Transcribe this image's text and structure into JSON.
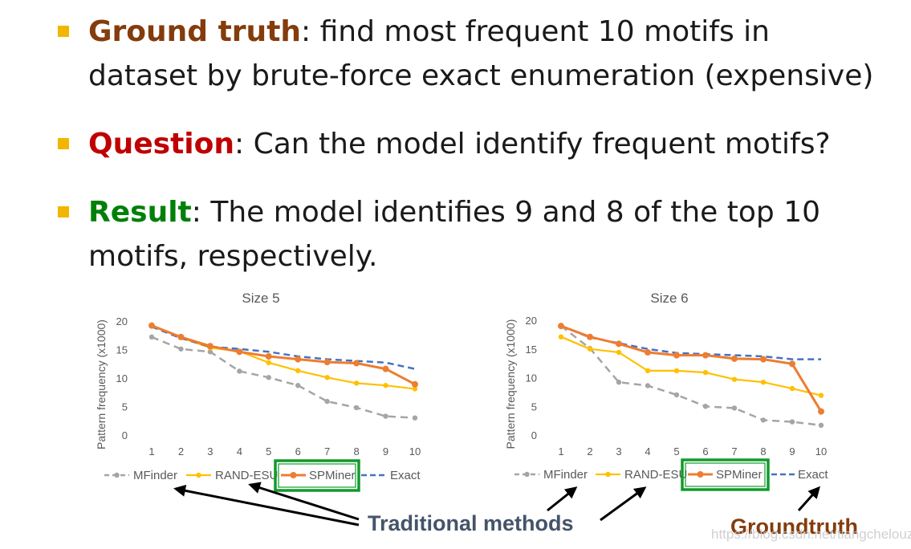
{
  "colors": {
    "bullet_marker": "#f2b600",
    "ground_truth_keyword": "#843c0c",
    "question_keyword": "#c00000",
    "result_keyword": "#00800a",
    "mfinder": "#a5a5a5",
    "rand_esu": "#ffc000",
    "spminer": "#ed7d31",
    "exact": "#4472c4",
    "highlight_box": "#119a2b",
    "traditional_methods": "#44546a",
    "groundtruth_label": "#843c0c"
  },
  "bullets": [
    {
      "keyword": "Ground truth",
      "line1": ": find most frequent 10 motifs in",
      "line2": "dataset by brute-force exact enumeration (expensive)"
    },
    {
      "keyword": "Question",
      "line1": ": Can the model identify frequent motifs?"
    },
    {
      "keyword": "Result",
      "line1": ": The model identifies 9 and 8 of the top 10",
      "line2": "motifs, respectively."
    }
  ],
  "chart_data": [
    {
      "type": "line",
      "title": "Size 5",
      "ylabel": "Pattern frequency (x1000)",
      "xlabel": "",
      "x": [
        1,
        2,
        3,
        4,
        5,
        6,
        7,
        8,
        9,
        10
      ],
      "ylim": [
        0,
        20
      ],
      "yticks": [
        0,
        5,
        10,
        15,
        20
      ],
      "grid": false,
      "legend_placement": "bottom",
      "series": [
        {
          "name": "MFinder",
          "style": "dashed-markers",
          "values": [
            17.2,
            15.1,
            14.6,
            11.2,
            10.1,
            8.7,
            5.9,
            4.8,
            3.3,
            3.0
          ]
        },
        {
          "name": "RAND-ESU",
          "style": "solid-markers",
          "values": [
            19.2,
            17.1,
            15.3,
            14.7,
            12.7,
            11.3,
            10.1,
            9.1,
            8.7,
            8.1
          ]
        },
        {
          "name": "SPMiner",
          "style": "solid-markers-bold",
          "values": [
            19.2,
            17.2,
            15.6,
            14.6,
            13.8,
            13.3,
            12.8,
            12.6,
            11.6,
            8.9
          ]
        },
        {
          "name": "Exact",
          "style": "dashed",
          "values": [
            19.0,
            17.0,
            15.5,
            15.1,
            14.6,
            13.8,
            13.3,
            13.0,
            12.7,
            11.6
          ]
        }
      ]
    },
    {
      "type": "line",
      "title": "Size 6",
      "ylabel": "Pattern frequency (x1000)",
      "xlabel": "",
      "x": [
        1,
        2,
        3,
        4,
        5,
        6,
        7,
        8,
        9,
        10
      ],
      "ylim": [
        0,
        20
      ],
      "yticks": [
        0,
        5,
        10,
        15,
        20
      ],
      "grid": false,
      "legend_placement": "bottom",
      "series": [
        {
          "name": "MFinder",
          "style": "dashed-markers",
          "values": [
            19.0,
            15.1,
            9.2,
            8.6,
            7.0,
            5.0,
            4.7,
            2.6,
            2.3,
            1.7
          ]
        },
        {
          "name": "RAND-ESU",
          "style": "solid-markers",
          "values": [
            17.1,
            15.0,
            14.4,
            11.2,
            11.2,
            10.9,
            9.7,
            9.2,
            8.1,
            6.9
          ]
        },
        {
          "name": "SPMiner",
          "style": "solid-markers-bold",
          "values": [
            19.0,
            17.1,
            15.9,
            14.4,
            13.9,
            13.9,
            13.3,
            13.2,
            12.4,
            4.1
          ]
        },
        {
          "name": "Exact",
          "style": "dashed",
          "values": [
            19.0,
            17.0,
            16.0,
            15.0,
            14.3,
            14.1,
            13.9,
            13.7,
            13.2,
            13.2
          ]
        }
      ]
    }
  ],
  "callouts": {
    "traditional_methods": "Traditional methods",
    "groundtruth": "Groundtruth"
  },
  "watermark": "https://blog.csdn.net/tiangchelouzi"
}
